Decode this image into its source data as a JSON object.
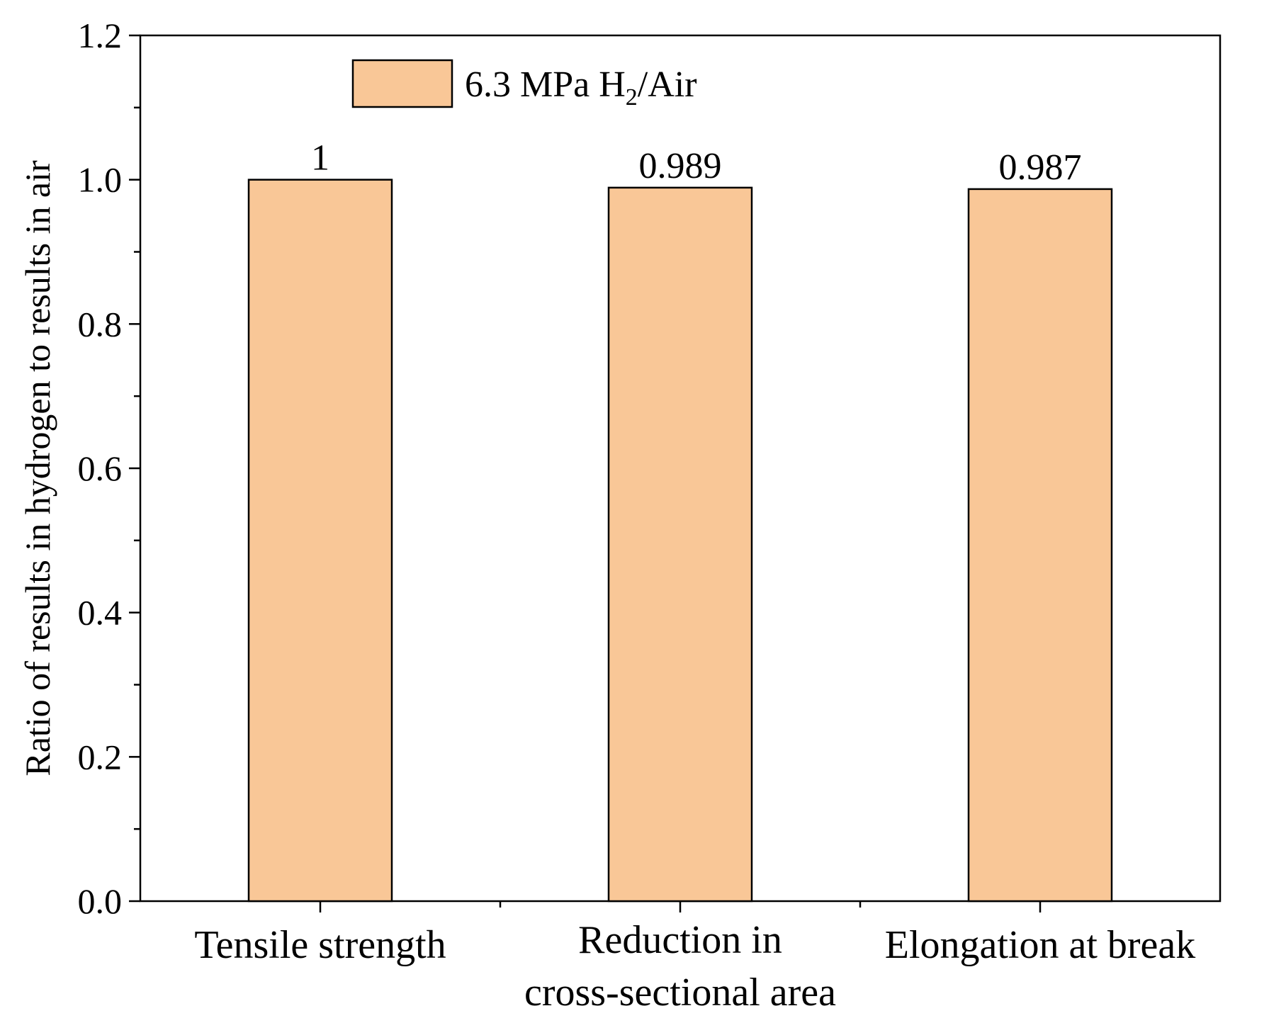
{
  "chart_data": {
    "type": "bar",
    "title": "",
    "xlabel": "",
    "ylabel": "Ratio of results in hydrogen to results in air",
    "ylim": [
      0,
      1.2
    ],
    "yticks": [
      0.0,
      0.2,
      0.4,
      0.6,
      0.8,
      1.0,
      1.2
    ],
    "yticks_text": [
      "0.0",
      "0.2",
      "0.4",
      "0.6",
      "0.8",
      "1.0",
      "1.2"
    ],
    "categories": [
      [
        "Tensile strength"
      ],
      [
        "Reduction in",
        "cross-sectional area"
      ],
      [
        "Elongation at break"
      ]
    ],
    "series": [
      {
        "name": "6.3 MPa H2/Air",
        "legend_main": "6.3 MPa H",
        "legend_sub": "2",
        "legend_tail": "/Air",
        "values": [
          1,
          0.989,
          0.987
        ],
        "value_labels": [
          "1",
          "0.989",
          "0.987"
        ],
        "color": "#F9C797",
        "edge_color": "#000000"
      }
    ],
    "legend_position": "top-left",
    "grid": false
  }
}
